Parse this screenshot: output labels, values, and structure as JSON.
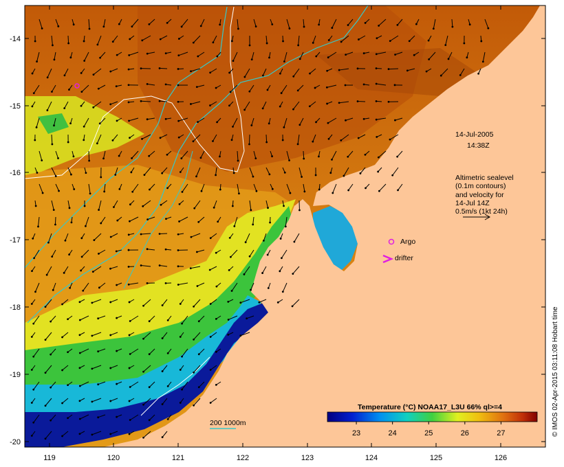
{
  "map": {
    "date": "14-Jul-2005",
    "time": "14:38Z",
    "lon_ticks": [
      "119",
      "120",
      "121",
      "122",
      "123",
      "124",
      "125",
      "126"
    ],
    "lat_ticks": [
      "-14",
      "-15",
      "-16",
      "-17",
      "-18",
      "-19",
      "-20"
    ],
    "legend_lines": [
      "Altimetric sealevel",
      "(0.1m contours)",
      "and velocity for",
      "14-Jul 14Z",
      "0.5m/s (1kt 24h)"
    ],
    "argo_label": "Argo",
    "drifter_label": "drifter",
    "depth_legend": "200 1000m",
    "colors": {
      "land": "#fdc698",
      "contour_isobath": "#36c9c9",
      "sealevel_contour": "#ffffff",
      "argo_marker": "#e020e0",
      "drifter_marker": "#e020e0"
    }
  },
  "colorbar": {
    "title": "Temperature (°C) NOAA17_L3U 66% ql>=4",
    "tick_labels": [
      "23",
      "24",
      "25",
      "26",
      "27"
    ],
    "min": 22.2,
    "max": 28.0
  },
  "footer": {
    "copyright": "© IMOS 02-Apr-2015 03:11:08 Hobart time"
  }
}
